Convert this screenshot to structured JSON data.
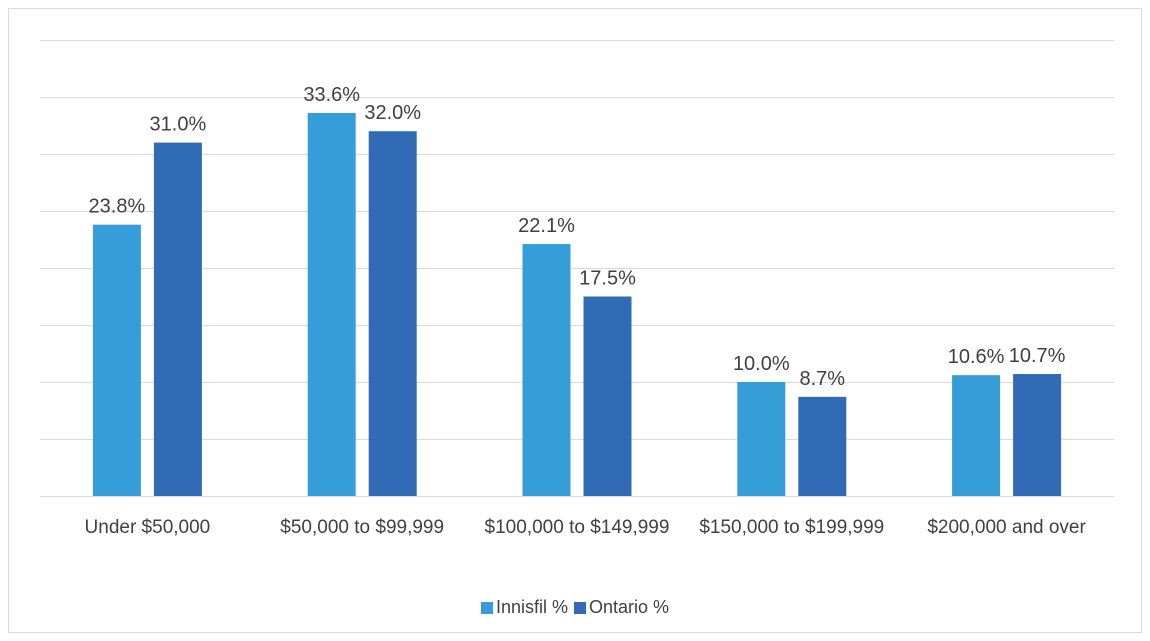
{
  "chart_data": {
    "type": "bar",
    "categories": [
      "Under $50,000",
      "$50,000 to $99,999",
      "$100,000 to $149,999",
      "$150,000 to $199,999",
      "$200,000 and over"
    ],
    "series": [
      {
        "name": "Innisfil %",
        "color": "#359dd7",
        "values": [
          23.8,
          33.6,
          22.1,
          10.0,
          10.6
        ],
        "value_labels": [
          "23.8%",
          "33.6%",
          "22.1%",
          "10.0%",
          "10.6%"
        ]
      },
      {
        "name": "Ontario %",
        "color": "#316bb6",
        "values": [
          31.0,
          32.0,
          17.5,
          8.7,
          10.7
        ],
        "value_labels": [
          "31.0%",
          "32.0%",
          "17.5%",
          "8.7%",
          "10.7%"
        ]
      }
    ],
    "ylim": [
      0,
      40
    ],
    "yticks": [
      0,
      5,
      10,
      15,
      20,
      25,
      30,
      35,
      40
    ],
    "grid": true,
    "legend": "bottom"
  }
}
